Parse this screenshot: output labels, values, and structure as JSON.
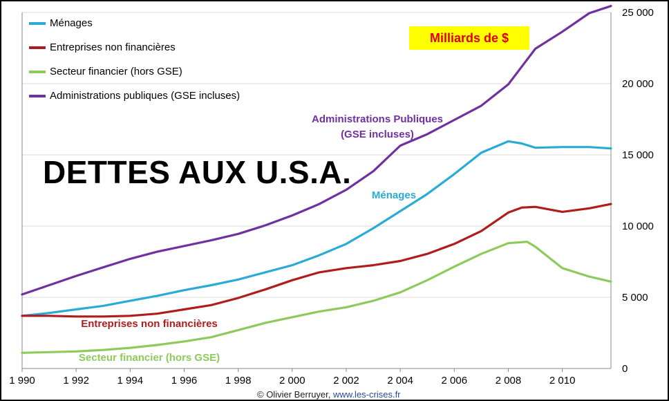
{
  "chart_data": {
    "type": "line",
    "title": "DETTES AUX U.S.A.",
    "unit_label": "Milliards de $",
    "xlabel": "",
    "ylabel": "",
    "xlim": [
      1990,
      2011.8
    ],
    "ylim": [
      0,
      25000
    ],
    "x_ticks": [
      "1 990",
      "1 992",
      "1 994",
      "1 996",
      "1 998",
      "2 000",
      "2 002",
      "2 004",
      "2 006",
      "2 008",
      "2 010"
    ],
    "x_tick_values": [
      1990,
      1992,
      1994,
      1996,
      1998,
      2000,
      2002,
      2004,
      2006,
      2008,
      2010
    ],
    "y_ticks": [
      "0",
      "5 000",
      "10 000",
      "15 000",
      "20 000",
      "25 000"
    ],
    "y_tick_values": [
      0,
      5000,
      10000,
      15000,
      20000,
      25000
    ],
    "grid": "horizontal",
    "legend_position": "top-left",
    "series": [
      {
        "name": "Ménages",
        "color": "#29abd6",
        "x": [
          1990,
          1991,
          1992,
          1993,
          1994,
          1995,
          1996,
          1997,
          1998,
          1999,
          2000,
          2001,
          2002,
          2003,
          2004,
          2005,
          2006,
          2007,
          2008,
          2008.5,
          2009,
          2010,
          2011,
          2011.8
        ],
        "values": [
          3700,
          3900,
          4150,
          4400,
          4750,
          5100,
          5500,
          5850,
          6250,
          6750,
          7250,
          7950,
          8750,
          9850,
          11050,
          12250,
          13650,
          15150,
          15950,
          15800,
          15500,
          15550,
          15550,
          15450
        ]
      },
      {
        "name": "Entreprises non financières",
        "color": "#b01c1c",
        "x": [
          1990,
          1991,
          1992,
          1993,
          1994,
          1995,
          1996,
          1997,
          1998,
          1999,
          2000,
          2001,
          2002,
          2003,
          2004,
          2005,
          2006,
          2007,
          2008,
          2008.5,
          2009,
          2010,
          2011,
          2011.8
        ],
        "values": [
          3700,
          3700,
          3650,
          3650,
          3700,
          3850,
          4150,
          4450,
          4950,
          5550,
          6200,
          6750,
          7050,
          7250,
          7550,
          8050,
          8750,
          9650,
          10950,
          11300,
          11350,
          11000,
          11250,
          11550
        ]
      },
      {
        "name": "Secteur financier (hors GSE)",
        "color": "#8dca5c",
        "x": [
          1990,
          1991,
          1992,
          1993,
          1994,
          1995,
          1996,
          1997,
          1998,
          1999,
          2000,
          2001,
          2002,
          2003,
          2004,
          2005,
          2006,
          2007,
          2008,
          2008.7,
          2009,
          2010,
          2011,
          2011.8
        ],
        "values": [
          1100,
          1150,
          1200,
          1300,
          1450,
          1650,
          1900,
          2200,
          2700,
          3200,
          3600,
          4000,
          4300,
          4750,
          5350,
          6200,
          7150,
          8050,
          8800,
          8900,
          8550,
          7050,
          6450,
          6100
        ]
      },
      {
        "name": "Administrations publiques (GSE incluses)",
        "color": "#7030a0",
        "x": [
          1990,
          1991,
          1992,
          1993,
          1994,
          1995,
          1996,
          1997,
          1998,
          1999,
          2000,
          2001,
          2002,
          2003,
          2004,
          2005,
          2006,
          2007,
          2008,
          2009,
          2010,
          2011,
          2011.8
        ],
        "values": [
          5200,
          5850,
          6500,
          7100,
          7700,
          8200,
          8600,
          9000,
          9450,
          10050,
          10750,
          11550,
          12550,
          13850,
          15650,
          16450,
          17450,
          18450,
          19950,
          22450,
          23650,
          24950,
          25450
        ]
      }
    ],
    "annotations": [
      {
        "text_lines": [
          "Administrations Publiques",
          "(GSE incluses)"
        ],
        "color": "#7030a0"
      },
      {
        "text_lines": [
          "Ménages"
        ],
        "color": "#29abd6"
      },
      {
        "text_lines": [
          "Entreprises non financières"
        ],
        "color": "#b01c1c"
      },
      {
        "text_lines": [
          "Secteur financier (hors GSE)"
        ],
        "color": "#8dca5c"
      }
    ],
    "credit": {
      "author": "© Olivier Berruyer, ",
      "site": "www.les-crises.fr"
    }
  }
}
